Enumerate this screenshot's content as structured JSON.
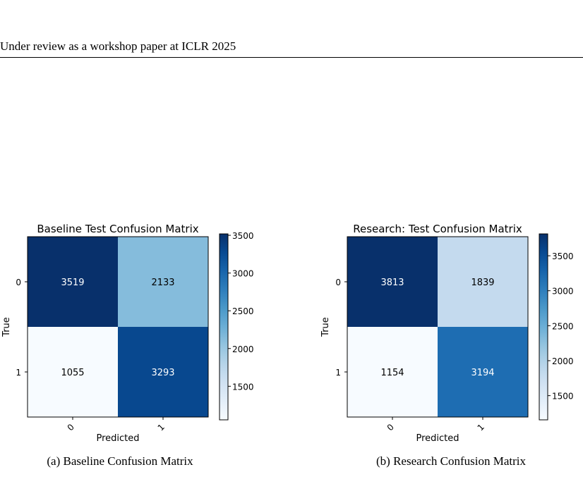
{
  "header": {
    "text": "Under review as a workshop paper at ICLR 2025"
  },
  "captions": [
    "(a) Baseline Confusion Matrix",
    "(b) Research Confusion Matrix"
  ],
  "chart_data": [
    {
      "type": "heatmap",
      "title": "Baseline Test Confusion Matrix",
      "xlabel": "Predicted",
      "ylabel": "True",
      "x_categories": [
        "0",
        "1"
      ],
      "y_categories": [
        "0",
        "1"
      ],
      "values": [
        [
          3519,
          2133
        ],
        [
          1055,
          3293
        ]
      ],
      "colormap": "Blues",
      "colorbar": {
        "min": 1055,
        "max": 3519,
        "ticks": [
          1500,
          2000,
          2500,
          3000,
          3500
        ]
      }
    },
    {
      "type": "heatmap",
      "title": "Research: Test Confusion Matrix",
      "xlabel": "Predicted",
      "ylabel": "True",
      "x_categories": [
        "0",
        "1"
      ],
      "y_categories": [
        "0",
        "1"
      ],
      "values": [
        [
          3813,
          1839
        ],
        [
          1154,
          3194
        ]
      ],
      "colormap": "Blues",
      "colorbar": {
        "min": 1154,
        "max": 3813,
        "ticks": [
          1500,
          2000,
          2500,
          3000,
          3500
        ]
      }
    }
  ]
}
